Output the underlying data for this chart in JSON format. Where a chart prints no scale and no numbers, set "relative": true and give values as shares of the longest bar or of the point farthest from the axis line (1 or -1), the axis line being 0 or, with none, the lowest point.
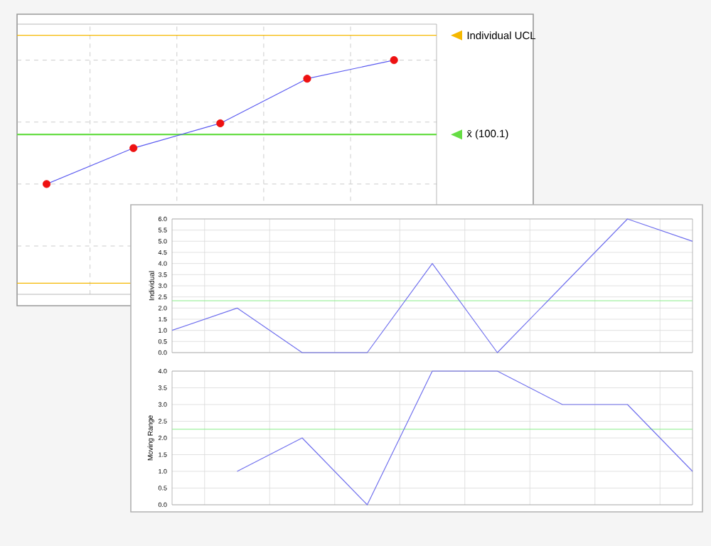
{
  "chart_data": [
    {
      "type": "line",
      "relative": true,
      "grid": true,
      "tick_labels": false,
      "categories": [
        null,
        null,
        null,
        null,
        null
      ],
      "series": [
        {
          "type": "line",
          "color": "#5a5af0",
          "marker": "circle",
          "colors": [
            "#ee1111",
            "#ee1111",
            "#ee1111",
            "#ee1111",
            "#ee1111"
          ],
          "values": [
            0,
            0.29,
            0.49,
            0.85,
            1
          ]
        }
      ],
      "ref_lines": [
        {
          "axis": "y",
          "value": 1.2,
          "label": "Individual UCL",
          "color": "#f5b800"
        },
        {
          "axis": "y",
          "value": 0.4,
          "label": "x̄  (100.1)",
          "color": "#66dd44"
        },
        {
          "axis": "y",
          "value": -0.8,
          "color": "#f5b800"
        }
      ]
    },
    {
      "type": "line",
      "ylabel": "Individual",
      "grid": true,
      "tick_labels": "y",
      "ylim": [
        0,
        6
      ],
      "categories": [
        null,
        null,
        null,
        null,
        null,
        null,
        null,
        null,
        null
      ],
      "yticks": [
        {
          "value": 0,
          "label": "0.0"
        },
        {
          "value": 0.5,
          "label": "0.5"
        },
        {
          "value": 1,
          "label": "1.0"
        },
        {
          "value": 1.5,
          "label": "1.5"
        },
        {
          "value": 2,
          "label": "2.0"
        },
        {
          "value": 2.5,
          "label": "2.5"
        },
        {
          "value": 3,
          "label": "3.0"
        },
        {
          "value": 3.5,
          "label": "3.5"
        },
        {
          "value": 4,
          "label": "4.0"
        },
        {
          "value": 4.5,
          "label": "4.5"
        },
        {
          "value": 5,
          "label": "5.0"
        },
        {
          "value": 5.5,
          "label": "5.5"
        },
        {
          "value": 6,
          "label": "6.0"
        }
      ],
      "series": [
        {
          "color": "#7070ee",
          "values": [
            1.0,
            2.0,
            0,
            0,
            4.0,
            0,
            3.0,
            6.0,
            5.0
          ]
        }
      ],
      "ref_lines": [
        {
          "axis": "y",
          "value": 2.33,
          "color": "#88ee88"
        }
      ]
    },
    {
      "type": "line",
      "ylabel": "Moving Range",
      "grid": true,
      "tick_labels": "y",
      "ylim": [
        0,
        4
      ],
      "categories": [
        null,
        null,
        null,
        null,
        null,
        null,
        null,
        null,
        null
      ],
      "yticks": [
        {
          "value": 0,
          "label": "0.0"
        },
        {
          "value": 0.5,
          "label": "0.5"
        },
        {
          "value": 1,
          "label": "1.0"
        },
        {
          "value": 1.5,
          "label": "1.5"
        },
        {
          "value": 2,
          "label": "2.0"
        },
        {
          "value": 2.5,
          "label": "2.5"
        },
        {
          "value": 3,
          "label": "3.0"
        },
        {
          "value": 3.5,
          "label": "3.5"
        },
        {
          "value": 4,
          "label": "4.0"
        }
      ],
      "series": [
        {
          "color": "#7070ee",
          "values": [
            null,
            1.0,
            2.0,
            0,
            4.0,
            4.0,
            3.0,
            3.0,
            1.0
          ]
        }
      ],
      "ref_lines": [
        {
          "axis": "y",
          "value": 2.26,
          "color": "#88ee88"
        }
      ]
    }
  ]
}
